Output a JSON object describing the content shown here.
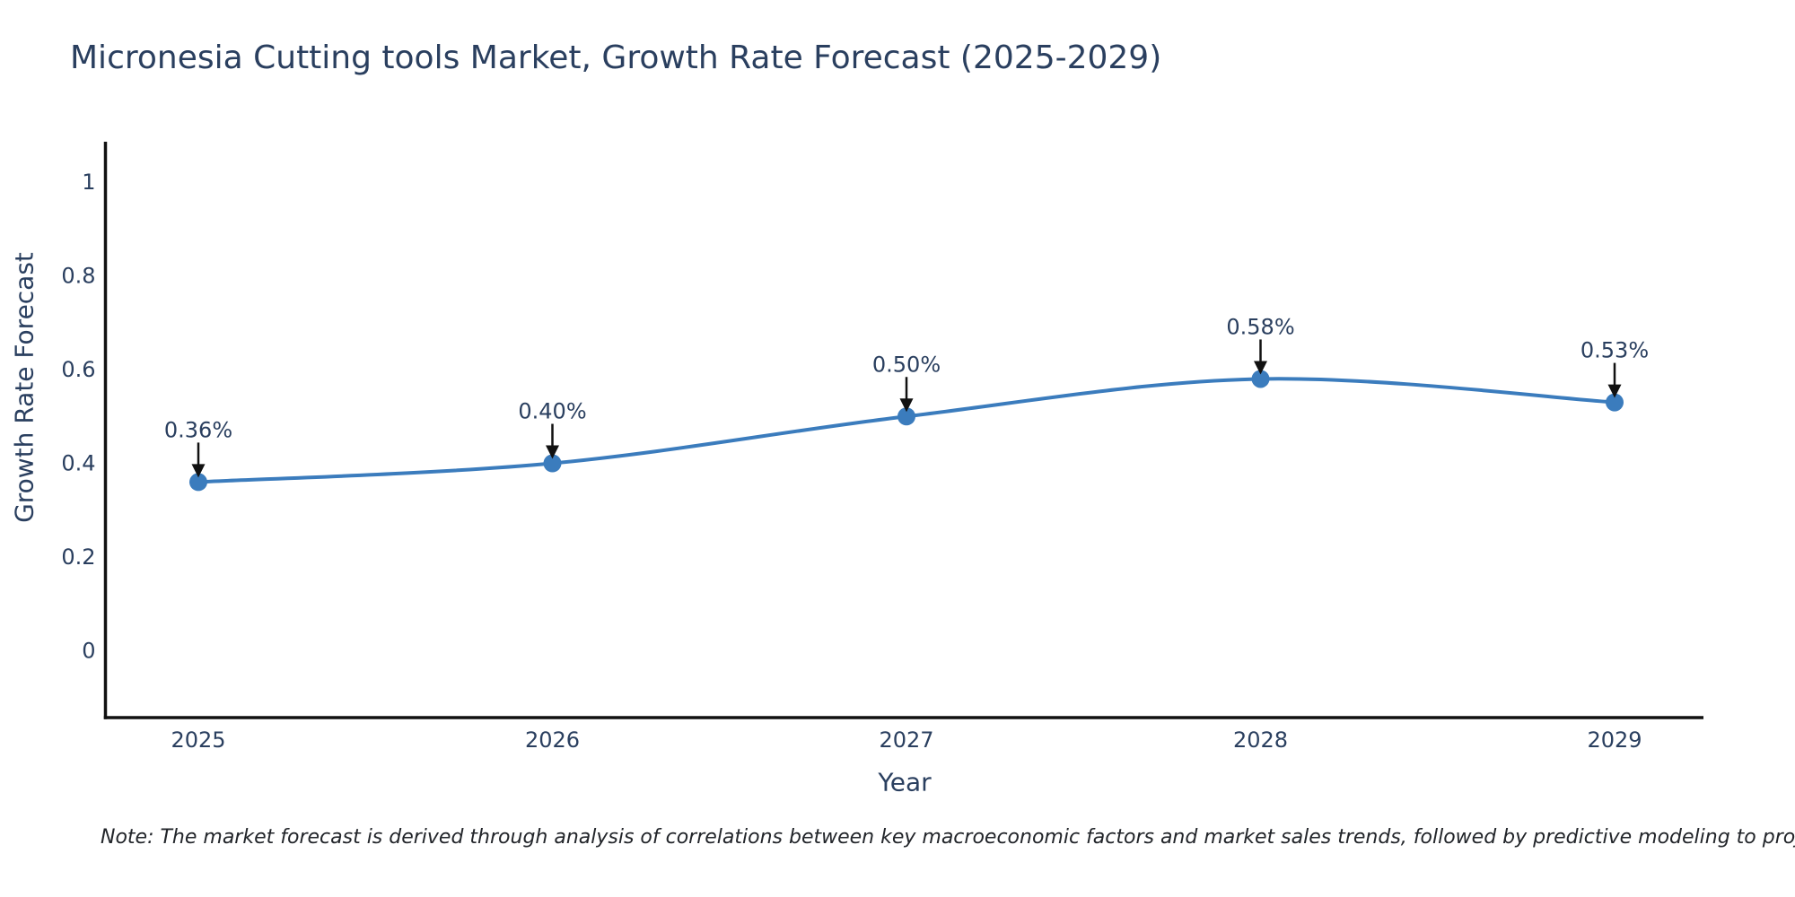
{
  "title": "Micronesia Cutting tools Market, Growth Rate Forecast (2025-2029)",
  "note": "Note: The market forecast is derived through analysis of correlations between key macroeconomic factors and market sales trends, followed by predictive modeling to project future sales",
  "chart_data": {
    "type": "line",
    "title": "Micronesia Cutting tools Market, Growth Rate Forecast (2025-2029)",
    "xlabel": "Year",
    "ylabel": "Growth Rate Forecast",
    "categories": [
      "2025",
      "2026",
      "2027",
      "2028",
      "2029"
    ],
    "series": [
      {
        "name": "Growth Rate Forecast",
        "values": [
          0.36,
          0.4,
          0.5,
          0.58,
          0.53
        ]
      }
    ],
    "point_labels": [
      "0.36%",
      "0.40%",
      "0.50%",
      "0.58%",
      "0.53%"
    ],
    "yticks": [
      "0",
      "0.2",
      "0.4",
      "0.6",
      "0.8",
      "1"
    ],
    "ytick_values": [
      0,
      0.2,
      0.4,
      0.6,
      0.8,
      1
    ],
    "ylim": [
      -0.145,
      1.086
    ],
    "xlim_pad_years": 0.264,
    "grid": false,
    "legend_position": "none",
    "line_shape": "spline",
    "colors": {
      "line": "#3b7cbd",
      "marker": "#3b7cbd",
      "axis": "#111111",
      "text": "#2a3f5f",
      "arrow": "#111111"
    }
  }
}
